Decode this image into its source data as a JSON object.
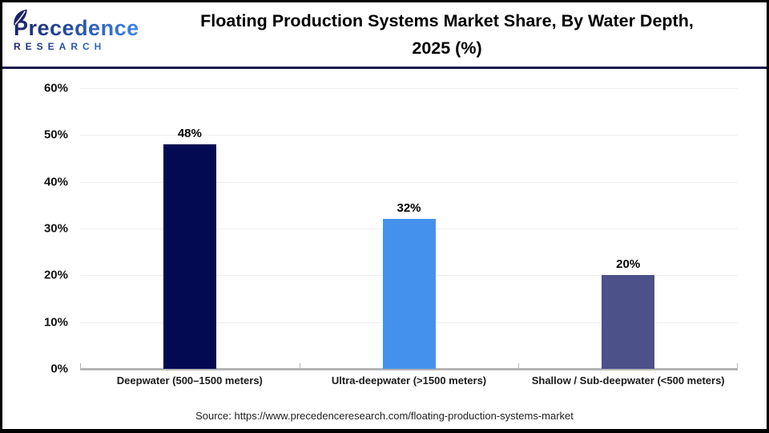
{
  "logo": {
    "name": "Precedence",
    "subname": "RESEARCH"
  },
  "header": {
    "title_line1": "Floating Production Systems Market Share, By Water Depth,",
    "title_line2": "2025 (%)"
  },
  "source": "Source: https://www.precedenceresearch.com/floating-production-systems-market",
  "brand_colors": {
    "navy": "#1c2468",
    "blue": "#3d86e8",
    "divider": "#191b4f"
  },
  "chart_data": {
    "type": "bar",
    "title": "Floating Production Systems Market Share, By Water Depth, 2025 (%)",
    "categories": [
      "Deepwater (500–1500 meters)",
      "Ultra-deepwater (>1500 meters)",
      "Shallow / Sub-deepwater (<500 meters)"
    ],
    "values": [
      48,
      32,
      20
    ],
    "value_labels": [
      "48%",
      "32%",
      "20%"
    ],
    "bar_colors": [
      "#030a52",
      "#4491ec",
      "#4c5189"
    ],
    "xlabel": "",
    "ylabel": "",
    "ylim": [
      0,
      60
    ],
    "yticks": [
      0,
      10,
      20,
      30,
      40,
      50,
      60
    ],
    "ytick_labels": [
      "0%",
      "10%",
      "20%",
      "30%",
      "40%",
      "50%",
      "60%"
    ],
    "grid": true,
    "legend": false
  }
}
